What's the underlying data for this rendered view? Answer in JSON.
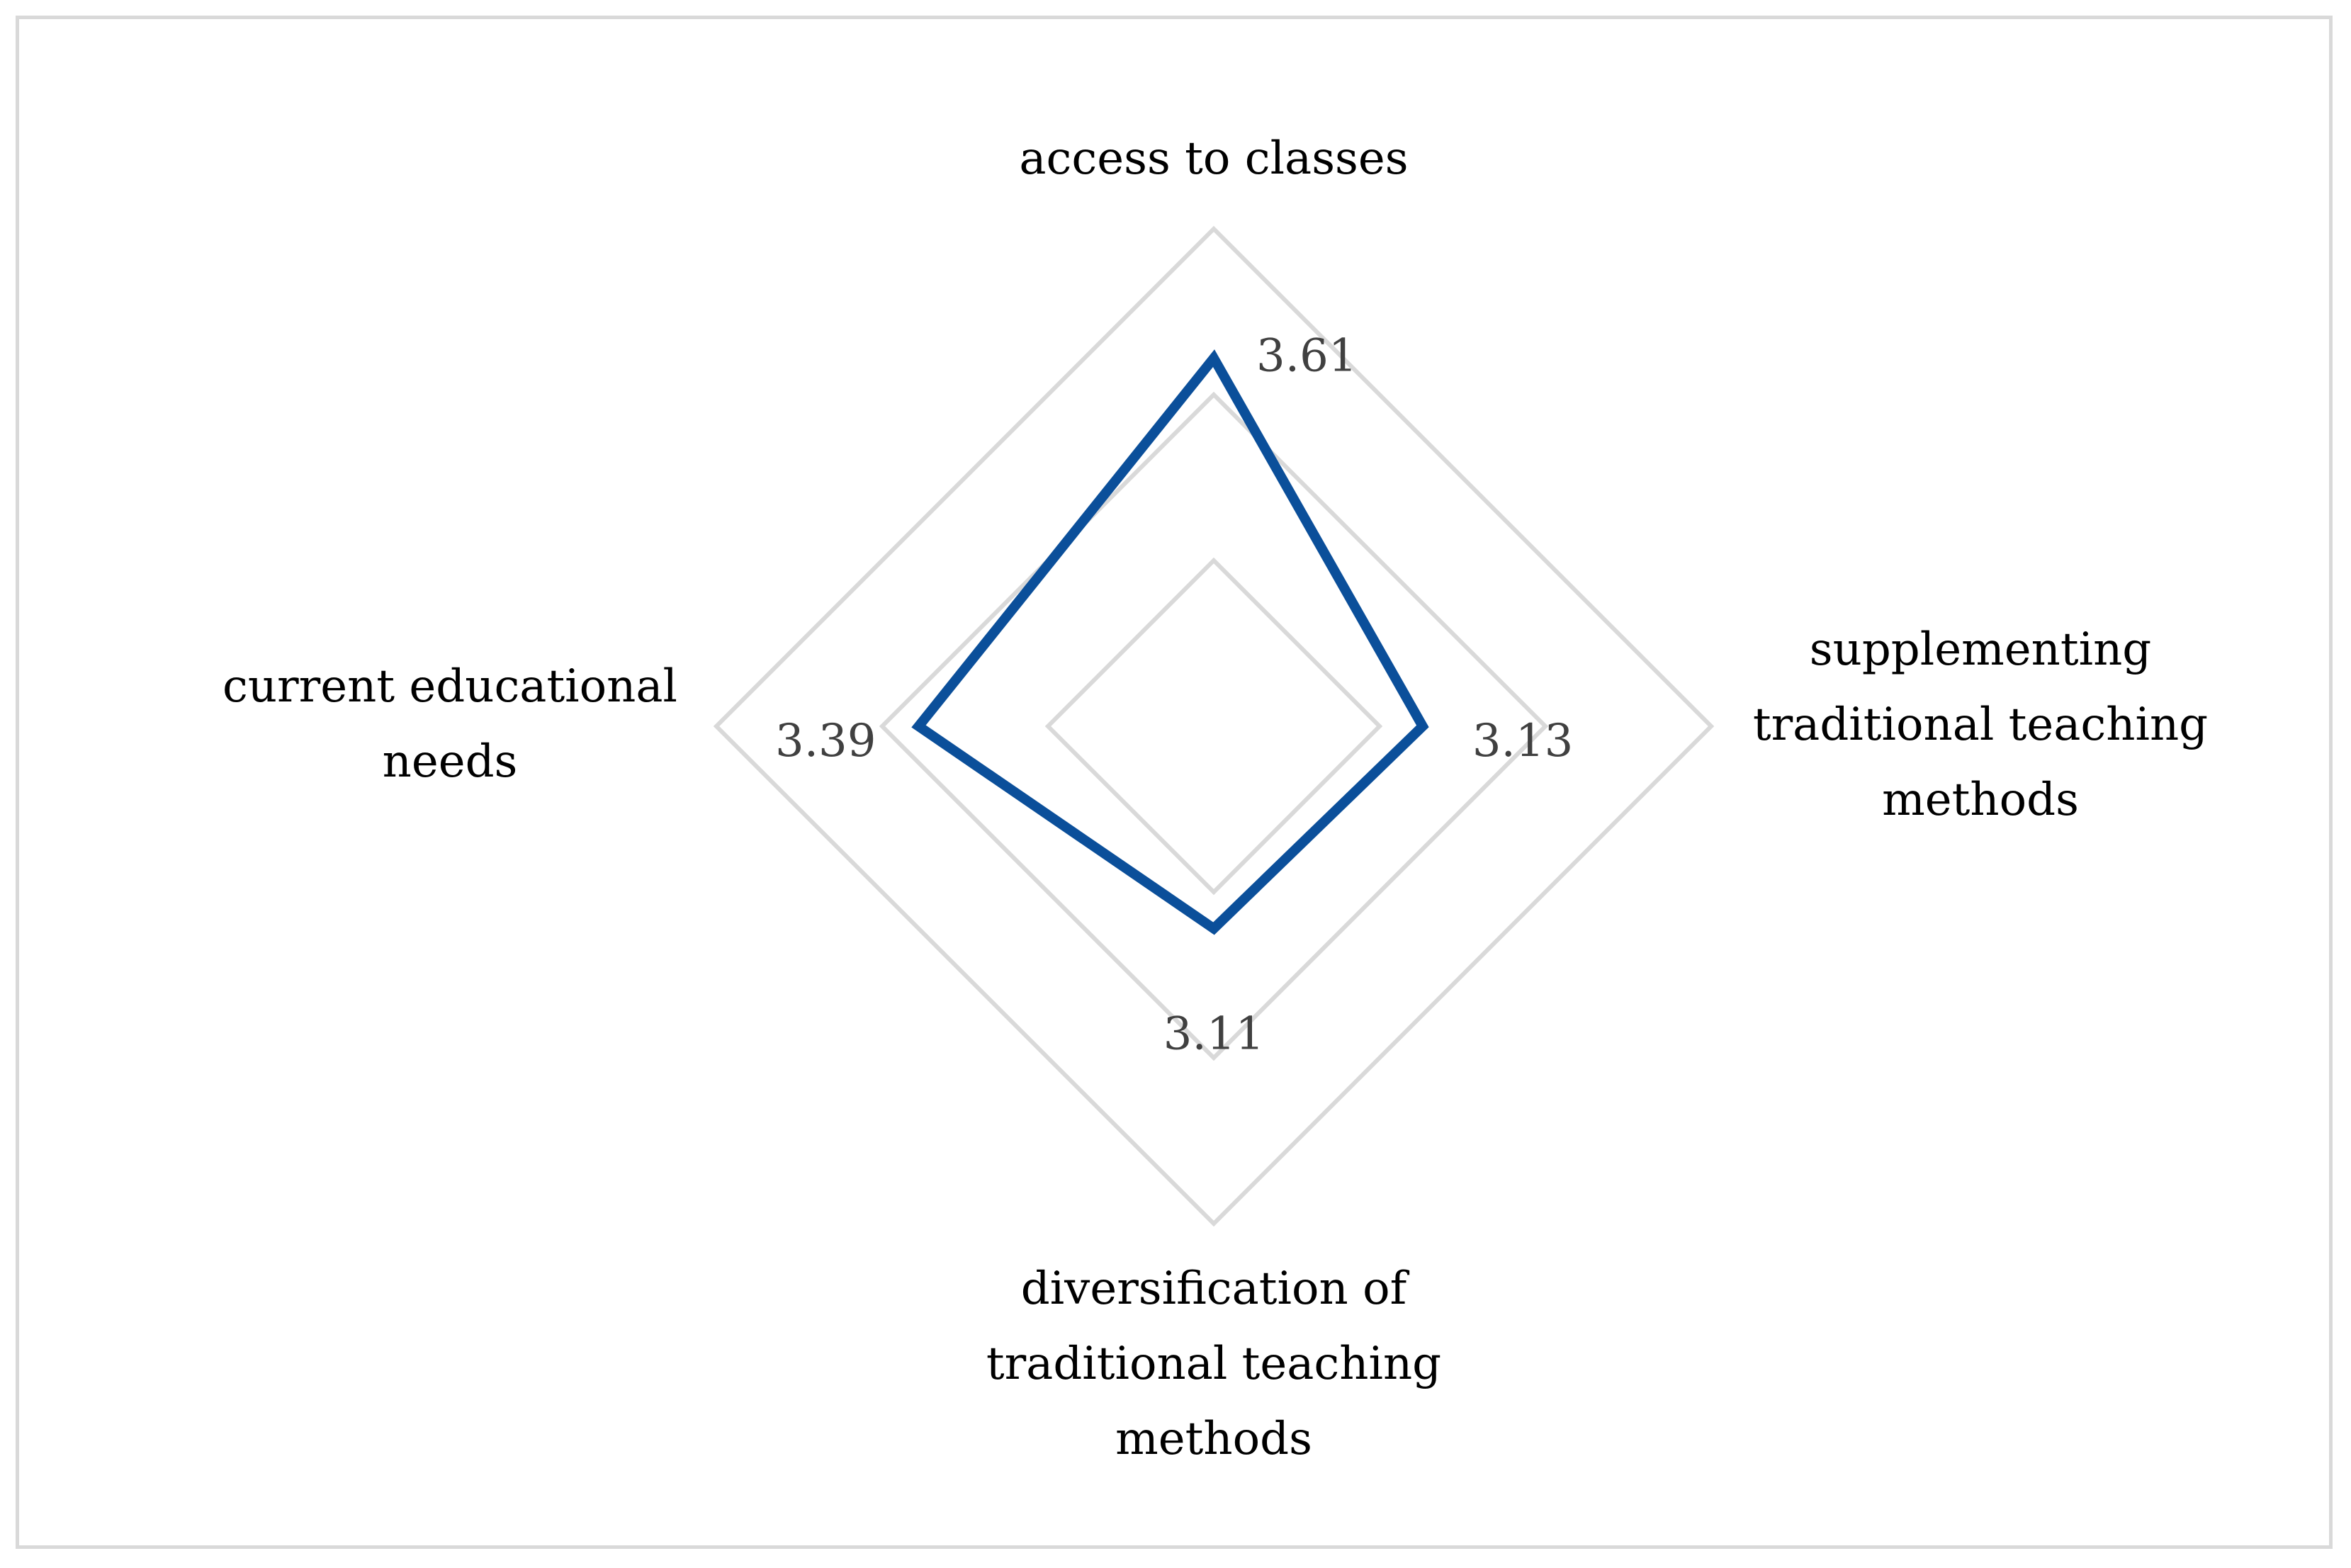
{
  "chart_data": {
    "type": "radar",
    "title": "",
    "categories": [
      [
        "access to classes"
      ],
      [
        "supplementing",
        "traditional teaching",
        "methods"
      ],
      [
        "diversification of",
        "traditional teaching",
        "methods"
      ],
      [
        "current educational",
        "needs"
      ]
    ],
    "series": [
      {
        "values": [
          3.61,
          3.13,
          3.11,
          3.39
        ],
        "color": "#0b4f9a"
      }
    ],
    "value_labels": [
      "3.61",
      "3.13",
      "3.11",
      "3.39"
    ],
    "rlim": [
      2.5,
      4.0
    ],
    "grid_levels": [
      2.5,
      3.0,
      3.5,
      4.0
    ],
    "grid": true,
    "gridline_color": "#d9d9d9",
    "legend": "none"
  }
}
